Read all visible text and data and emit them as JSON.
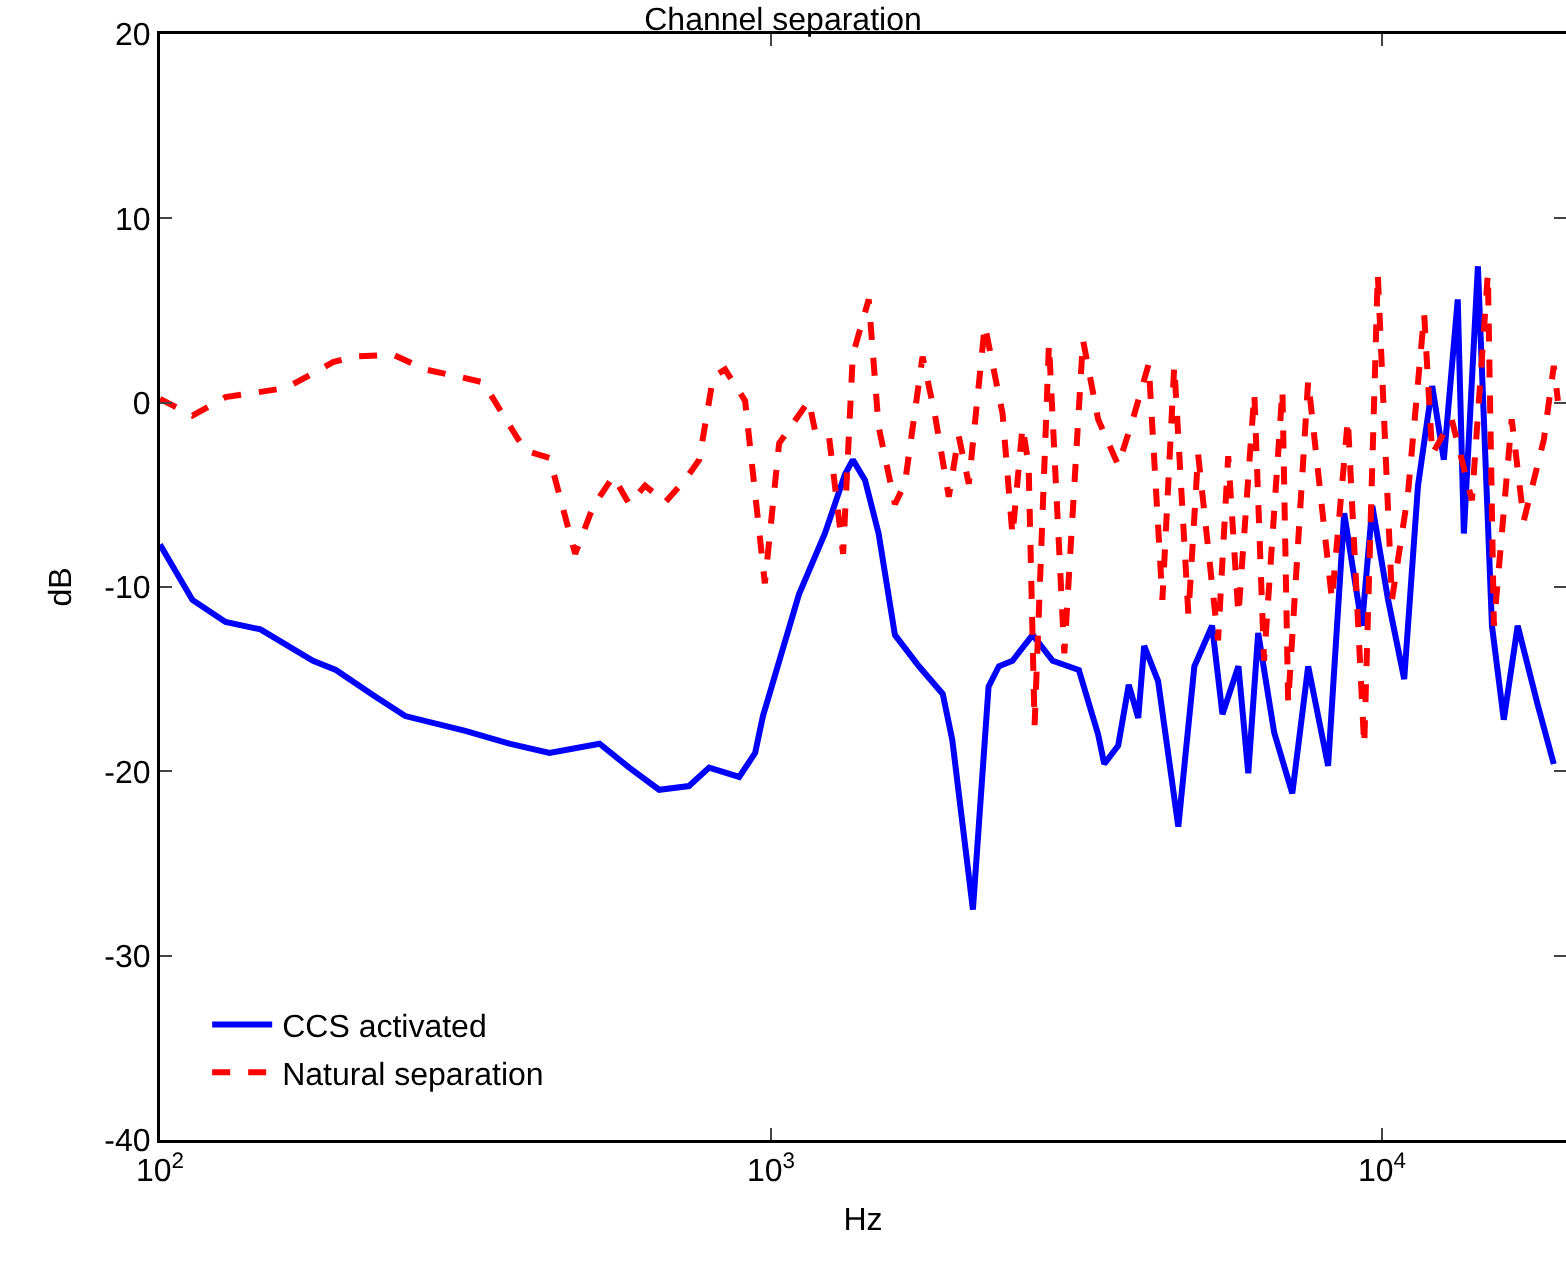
{
  "chart_data": {
    "type": "line",
    "title": "Channel separation",
    "xlabel": "Hz",
    "ylabel": "dB",
    "log": "x",
    "grid": false,
    "legend": "bottom left",
    "xlim": [
      100,
      20000
    ],
    "xticks": [
      {
        "value": 100,
        "label": "10$^{2}$"
      },
      {
        "value": 1000,
        "label": "10$^{3}$"
      },
      {
        "value": 10000,
        "label": "10$^{4}$"
      }
    ],
    "ylim": [
      -40,
      20
    ],
    "yticks": [
      -40,
      -30,
      -20,
      -10,
      0,
      10,
      20
    ],
    "series": [
      {
        "name": "CCS activated",
        "color": "#0000ff",
        "line_style": "solid",
        "x": [
          100,
          113,
          128,
          146,
          178,
          194,
          224,
          252,
          316,
          373,
          434,
          524,
          586,
          656,
          734,
          792,
          887,
          942,
          970,
          1111,
          1225,
          1321,
          1361,
          1425,
          1500,
          1595,
          1746,
          1910,
          1980,
          2140,
          2270,
          2360,
          2484,
          2680,
          2890,
          3190,
          3430,
          3510,
          3700,
          3850,
          3990,
          4080,
          4300,
          4640,
          4930,
          5270,
          5480,
          5820,
          6040,
          6270,
          6660,
          7130,
          7570,
          8160,
          8670,
          9270,
          9640,
          10230,
          10870,
          11450,
          12080,
          12620,
          13300,
          13610,
          14350,
          15130,
          15820,
          16670,
          17980,
          19100
        ],
        "values": [
          -7.7,
          -10.7,
          -11.9,
          -12.3,
          -14.0,
          -14.5,
          -15.9,
          -17.0,
          -17.8,
          -18.5,
          -19.0,
          -18.5,
          -19.8,
          -21.0,
          -20.8,
          -19.8,
          -20.3,
          -19.0,
          -17.0,
          -10.4,
          -7.1,
          -3.9,
          -3.1,
          -4.2,
          -7.1,
          -12.6,
          -14.3,
          -15.8,
          -18.3,
          -27.5,
          -15.4,
          -14.3,
          -14.0,
          -12.6,
          -14.0,
          -14.5,
          -18.0,
          -19.6,
          -18.6,
          -15.3,
          -17.1,
          -13.2,
          -15.1,
          -23.0,
          -14.3,
          -12.1,
          -16.9,
          -14.3,
          -20.1,
          -12.5,
          -17.9,
          -21.2,
          -14.3,
          -19.7,
          -6.0,
          -12.1,
          -5.6,
          -10.7,
          -15.0,
          -4.5,
          0.9,
          -3.1,
          5.6,
          -7.1,
          7.4,
          -12.1,
          -17.2,
          -12.1,
          -16.4,
          -19.6
        ]
      },
      {
        "name": "Natural separation",
        "color": "#ff0000",
        "line_style": "dashed",
        "x": [
          100,
          113,
          128,
          161,
          192,
          208,
          241,
          272,
          309,
          338,
          368,
          396,
          434,
          478,
          512,
          552,
          586,
          622,
          671,
          723,
          763,
          804,
          841,
          907,
          977,
          1031,
          1153,
          1180,
          1244,
          1312,
          1361,
          1445,
          1500,
          1595,
          1656,
          1770,
          1853,
          1954,
          2028,
          2107,
          2238,
          2393,
          2484,
          2580,
          2640,
          2700,
          2850,
          3020,
          3240,
          3430,
          3700,
          3910,
          4150,
          4370,
          4570,
          4820,
          5000,
          5390,
          5600,
          5820,
          6180,
          6410,
          6870,
          7020,
          7570,
          8280,
          8790,
          9350,
          9840,
          10380,
          11020,
          11720,
          12080,
          13000,
          14030,
          14900,
          15240,
          16300,
          17060,
          18400,
          19100,
          19400
        ],
        "values": [
          0.2,
          -0.7,
          0.3,
          0.8,
          2.2,
          2.5,
          2.6,
          1.8,
          1.4,
          1.1,
          -0.9,
          -2.6,
          -3.0,
          -8.2,
          -5.6,
          -4.0,
          -5.5,
          -4.5,
          -5.4,
          -4.2,
          -3.1,
          1.4,
          1.8,
          0.1,
          -9.8,
          -2.2,
          0.1,
          -1.5,
          -1.8,
          -8.2,
          2.6,
          5.6,
          -1.3,
          -5.5,
          -4.4,
          2.5,
          -0.6,
          -5.1,
          -1.8,
          -4.4,
          4.2,
          -0.6,
          -7.2,
          -1.3,
          -3.4,
          -17.5,
          3.2,
          -13.6,
          3.4,
          -0.9,
          -3.4,
          -0.9,
          2.1,
          -10.7,
          2.0,
          -11.5,
          -2.8,
          -12.9,
          -2.9,
          -11.5,
          0.5,
          -14.0,
          0.7,
          -16.3,
          1.2,
          -10.7,
          -0.9,
          -18.6,
          7.0,
          -10.7,
          -5.0,
          4.8,
          -2.8,
          -0.9,
          -5.3,
          7.0,
          -12.1,
          -0.9,
          -6.4,
          -2.0,
          2.0,
          0.1
        ]
      }
    ]
  }
}
